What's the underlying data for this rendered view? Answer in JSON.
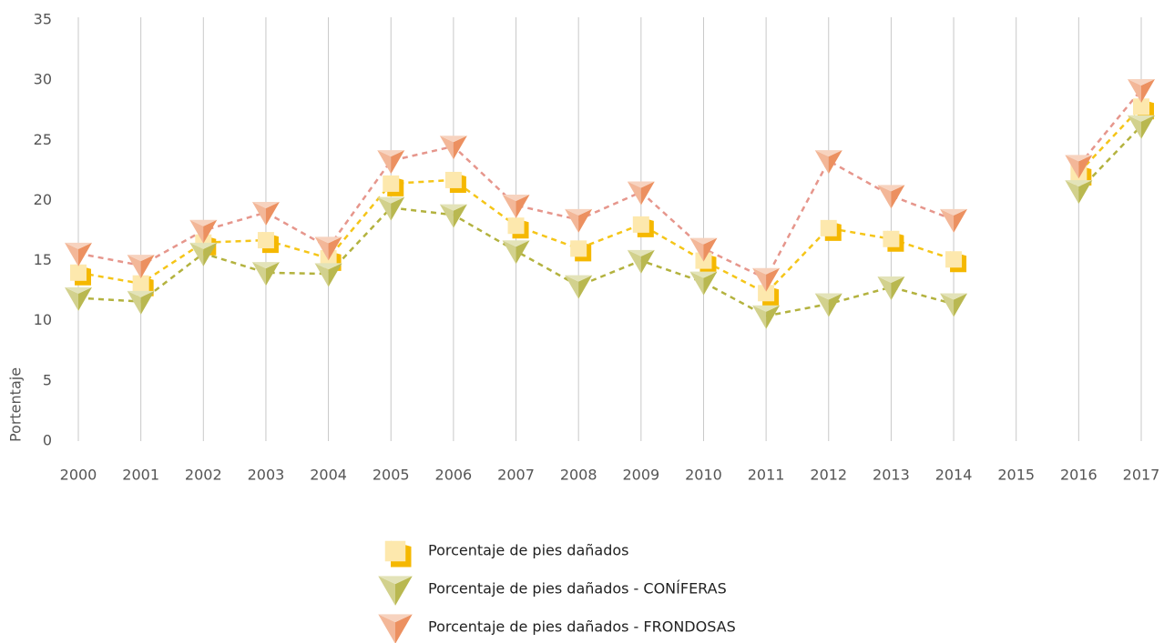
{
  "chart_data": {
    "type": "line",
    "y_label": "Portentaje",
    "categories": [
      "2000",
      "2001",
      "2002",
      "2003",
      "2004",
      "2005",
      "2006",
      "2007",
      "2008",
      "2009",
      "2010",
      "2011",
      "2012",
      "2013",
      "2014",
      "2015",
      "2016",
      "2017"
    ],
    "series": [
      {
        "name": "Porcentaje de pies dañados",
        "marker": "square",
        "color": "#fbd669",
        "line_color": "#f5c518",
        "values": [
          14.0,
          13.1,
          16.5,
          16.7,
          15.2,
          21.4,
          21.7,
          17.9,
          16.0,
          18.0,
          15.0,
          12.3,
          17.7,
          16.8,
          15.1,
          null,
          22.3,
          27.8
        ]
      },
      {
        "name": "Porcentaje de pies dañados - CONÍFERAS",
        "marker": "triangle",
        "color": "#b9b850",
        "line_color": "#b3b23e",
        "values": [
          11.9,
          11.6,
          15.6,
          14.0,
          13.9,
          19.4,
          18.8,
          15.8,
          12.9,
          15.0,
          13.2,
          10.4,
          11.4,
          12.8,
          11.4,
          null,
          20.8,
          26.2
        ]
      },
      {
        "name": "Porcentaje de pies dañados - FRONDOSAS",
        "marker": "triangle",
        "color": "#ec9060",
        "line_color": "#e6968c",
        "values": [
          15.6,
          14.6,
          17.5,
          19.0,
          16.1,
          23.3,
          24.5,
          19.6,
          18.4,
          20.7,
          16.0,
          13.5,
          23.3,
          20.4,
          18.4,
          null,
          22.9,
          29.2
        ]
      }
    ],
    "ylim": [
      0,
      35
    ],
    "yticks": [
      0,
      5,
      10,
      15,
      20,
      25,
      30,
      35
    ],
    "grid": "x"
  }
}
